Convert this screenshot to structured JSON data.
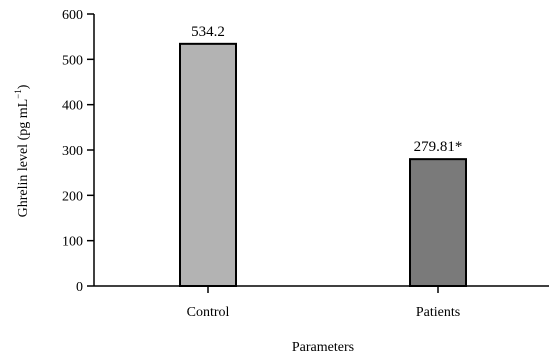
{
  "chart_data": {
    "type": "bar",
    "categories": [
      "Control",
      "Patients"
    ],
    "values": [
      534.2,
      279.81
    ],
    "data_labels": [
      "534.2",
      "279.81*"
    ],
    "xlabel": "Parameters",
    "ylabel_text": "Ghrelin level (pg mL",
    "ylabel_superscript": "−1",
    "ylabel_close": ")",
    "ylim": [
      0,
      600
    ],
    "yticks": [
      0,
      100,
      200,
      300,
      400,
      500,
      600
    ],
    "ytick_labels": [
      "0",
      "100",
      "200",
      "300",
      "400",
      "500",
      "600"
    ],
    "bar_colors": [
      "#b3b3b3",
      "#7a7a7a"
    ],
    "grid": false,
    "legend": "none"
  }
}
